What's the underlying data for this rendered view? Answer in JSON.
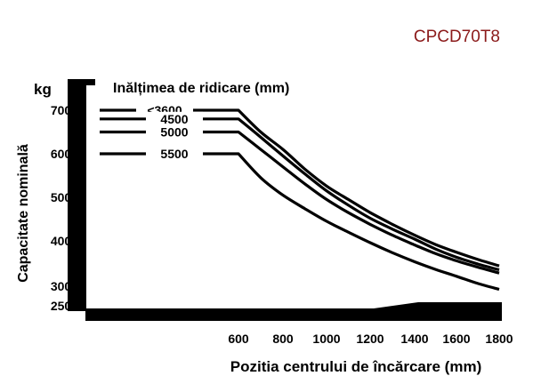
{
  "chart_data": {
    "type": "line",
    "model": "CPCD70T8",
    "xlabel": "Pozitia centrului de încărcare (mm)",
    "ylabel": "Capacitate nominală",
    "y_unit": "kg",
    "legend_title": "Inălțimea de ridicare (mm)",
    "x_ticks": [
      "600",
      "800",
      "1000",
      "1200",
      "1400",
      "1600",
      "1800"
    ],
    "y_ticks": [
      "2500",
      "3000",
      "4000",
      "5000",
      "6000",
      "7000"
    ],
    "xlim": [
      600,
      1800
    ],
    "ylim": [
      2500,
      7000
    ],
    "grid": false,
    "colors": {
      "text": "#000000",
      "model": "#8b1a1a",
      "line": "#000000"
    },
    "series": [
      {
        "name": "<3600",
        "x": [
          600,
          700,
          800,
          900,
          1000,
          1100,
          1200,
          1300,
          1400,
          1500,
          1600,
          1700,
          1800
        ],
        "y": [
          7000,
          6500,
          6100,
          5650,
          5260,
          4950,
          4650,
          4380,
          4130,
          3920,
          3750,
          3590,
          3450
        ]
      },
      {
        "name": "4500",
        "x": [
          600,
          700,
          800,
          900,
          1000,
          1100,
          1200,
          1300,
          1400,
          1500,
          1600,
          1700,
          1800
        ],
        "y": [
          6800,
          6380,
          5950,
          5540,
          5150,
          4820,
          4520,
          4270,
          4040,
          3820,
          3640,
          3490,
          3360
        ]
      },
      {
        "name": "5000",
        "x": [
          600,
          700,
          800,
          900,
          1000,
          1100,
          1200,
          1300,
          1400,
          1500,
          1600,
          1700,
          1800
        ],
        "y": [
          6500,
          6100,
          5700,
          5310,
          4950,
          4650,
          4380,
          4130,
          3910,
          3720,
          3560,
          3420,
          3290
        ]
      },
      {
        "name": "5500",
        "x": [
          600,
          700,
          800,
          900,
          1000,
          1100,
          1200,
          1300,
          1400,
          1500,
          1600,
          1700,
          1800
        ],
        "y": [
          6000,
          5450,
          5050,
          4740,
          4450,
          4200,
          3960,
          3740,
          3540,
          3370,
          3220,
          3060,
          2920
        ]
      }
    ]
  }
}
